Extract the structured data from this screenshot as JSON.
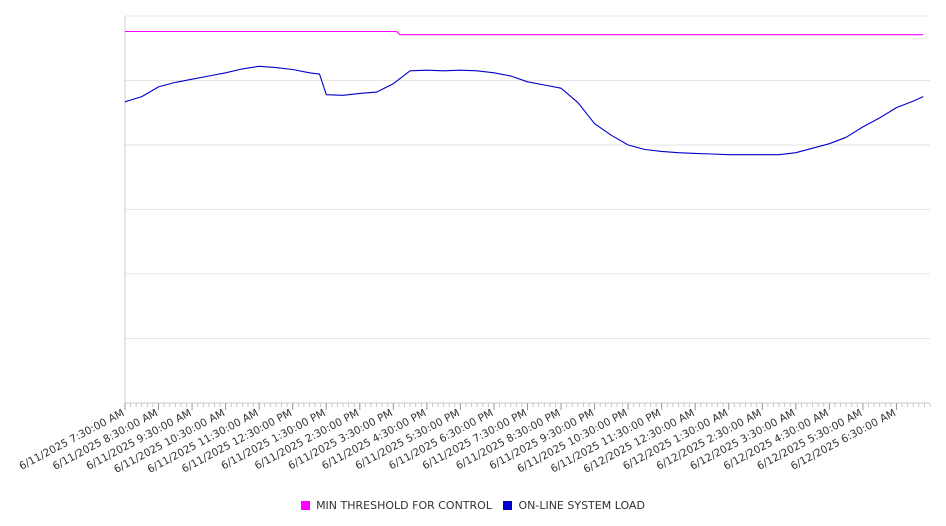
{
  "chart_data": {
    "type": "line",
    "title": "",
    "xlabel": "",
    "ylabel": "",
    "x_start": "6/11/2025 7:30:00 AM",
    "x_end": "6/12/2025 7:30:00 AM",
    "ylim": [
      0,
      6
    ],
    "grid": true,
    "legend_position": "bottom-center",
    "x_tick_labels": [
      "6/11/2025 7:30:00 AM",
      "6/11/2025 8:30:00 AM",
      "6/11/2025 9:30:00 AM",
      "6/11/2025 10:30:00 AM",
      "6/11/2025 11:30:00 AM",
      "6/11/2025 12:30:00 PM",
      "6/11/2025 1:30:00 PM",
      "6/11/2025 2:30:00 PM",
      "6/11/2025 3:30:00 PM",
      "6/11/2025 4:30:00 PM",
      "6/11/2025 5:30:00 PM",
      "6/11/2025 6:30:00 PM",
      "6/11/2025 7:30:00 PM",
      "6/11/2025 8:30:00 PM",
      "6/11/2025 9:30:00 PM",
      "6/11/2025 10:30:00 PM",
      "6/11/2025 11:30:00 PM",
      "6/12/2025 12:30:00 AM",
      "6/12/2025 1:30:00 AM",
      "6/12/2025 2:30:00 AM",
      "6/12/2025 3:30:00 AM",
      "6/12/2025 4:30:00 AM",
      "6/12/2025 5:30:00 AM",
      "6/12/2025 6:30:00 AM"
    ],
    "series": [
      {
        "name": "MIN THRESHOLD FOR CONTROL",
        "color": "#ff00ff",
        "x_hours": [
          0,
          8.1,
          8.2,
          23.8
        ],
        "y": [
          5.76,
          5.76,
          5.71,
          5.71
        ]
      },
      {
        "name": "ON-LINE SYSTEM LOAD",
        "color": "#0000cc",
        "x_hours": [
          0,
          0.5,
          1.0,
          1.5,
          2.0,
          2.5,
          3.0,
          3.5,
          4.0,
          4.5,
          5.0,
          5.5,
          5.8,
          6.0,
          6.5,
          7.0,
          7.5,
          8.0,
          8.5,
          9.0,
          9.5,
          10.0,
          10.5,
          11.0,
          11.5,
          12.0,
          12.5,
          13.0,
          13.5,
          14.0,
          14.5,
          15.0,
          15.5,
          16.0,
          16.5,
          17.0,
          17.5,
          18.0,
          18.5,
          19.0,
          19.5,
          20.0,
          20.5,
          21.0,
          21.5,
          22.0,
          22.5,
          23.0,
          23.5,
          23.8
        ],
        "y": [
          4.67,
          4.75,
          4.9,
          4.97,
          5.02,
          5.07,
          5.12,
          5.18,
          5.22,
          5.2,
          5.17,
          5.12,
          5.1,
          4.78,
          4.77,
          4.8,
          4.82,
          4.95,
          5.15,
          5.16,
          5.15,
          5.16,
          5.15,
          5.12,
          5.07,
          4.98,
          4.93,
          4.88,
          4.66,
          4.33,
          4.15,
          4.0,
          3.93,
          3.9,
          3.88,
          3.87,
          3.86,
          3.85,
          3.85,
          3.85,
          3.85,
          3.88,
          3.95,
          4.02,
          4.12,
          4.28,
          4.42,
          4.58,
          4.68,
          4.75
        ]
      }
    ]
  }
}
